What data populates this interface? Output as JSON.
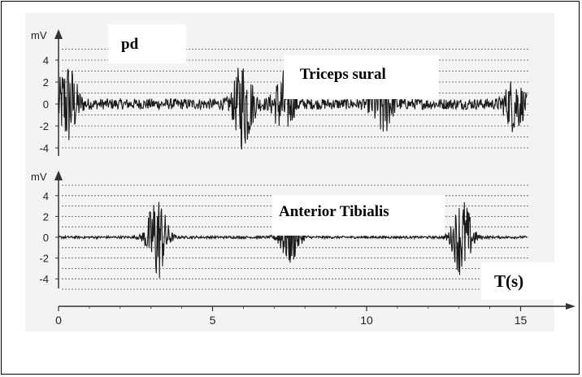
{
  "labels": {
    "panel_tag": "pd",
    "upper_muscle": "Triceps sural",
    "lower_muscle": "Anterior Tibialis",
    "time_unit": "T(s)"
  },
  "colors": {
    "frame": "#000000",
    "background": "#f3f3f2",
    "trace": "#1a1a1a",
    "gridline": "#555555",
    "axis": "#333333"
  },
  "chart_data": [
    {
      "type": "line",
      "ylabel": "mV",
      "series_label": "Triceps sural",
      "ylim": [
        -5,
        5
      ],
      "yticks": [
        4,
        2,
        0,
        -2,
        -4
      ],
      "ytick_labels": [
        "4",
        "2",
        "0",
        "-2",
        "-4"
      ],
      "xlim": [
        0,
        15.5
      ],
      "grid": true,
      "bursts": [
        {
          "t": 0.3,
          "amp": 3.8
        },
        {
          "t": 6.0,
          "amp": 4.0
        },
        {
          "t": 7.3,
          "amp": 2.8
        },
        {
          "t": 10.5,
          "amp": 3.0
        },
        {
          "t": 14.8,
          "amp": 2.3
        }
      ],
      "baseline_noise": 0.5
    },
    {
      "type": "line",
      "ylabel": "mV",
      "series_label": "Anterior Tibialis",
      "ylim": [
        -5,
        5
      ],
      "yticks": [
        4,
        2,
        0,
        -2,
        -4
      ],
      "ytick_labels": [
        "4",
        "2",
        "0",
        "-2",
        "-4"
      ],
      "xlim": [
        0,
        15.5
      ],
      "xticks": [
        0,
        5,
        10,
        15
      ],
      "xtick_labels": [
        "0",
        "5",
        "10",
        "15"
      ],
      "xlabel": "T(s)",
      "grid": true,
      "bursts": [
        {
          "t": 3.2,
          "amp": 4.5
        },
        {
          "t": 7.5,
          "amp": 2.8
        },
        {
          "t": 13.1,
          "amp": 4.0
        }
      ],
      "baseline_noise": 0.12
    }
  ]
}
